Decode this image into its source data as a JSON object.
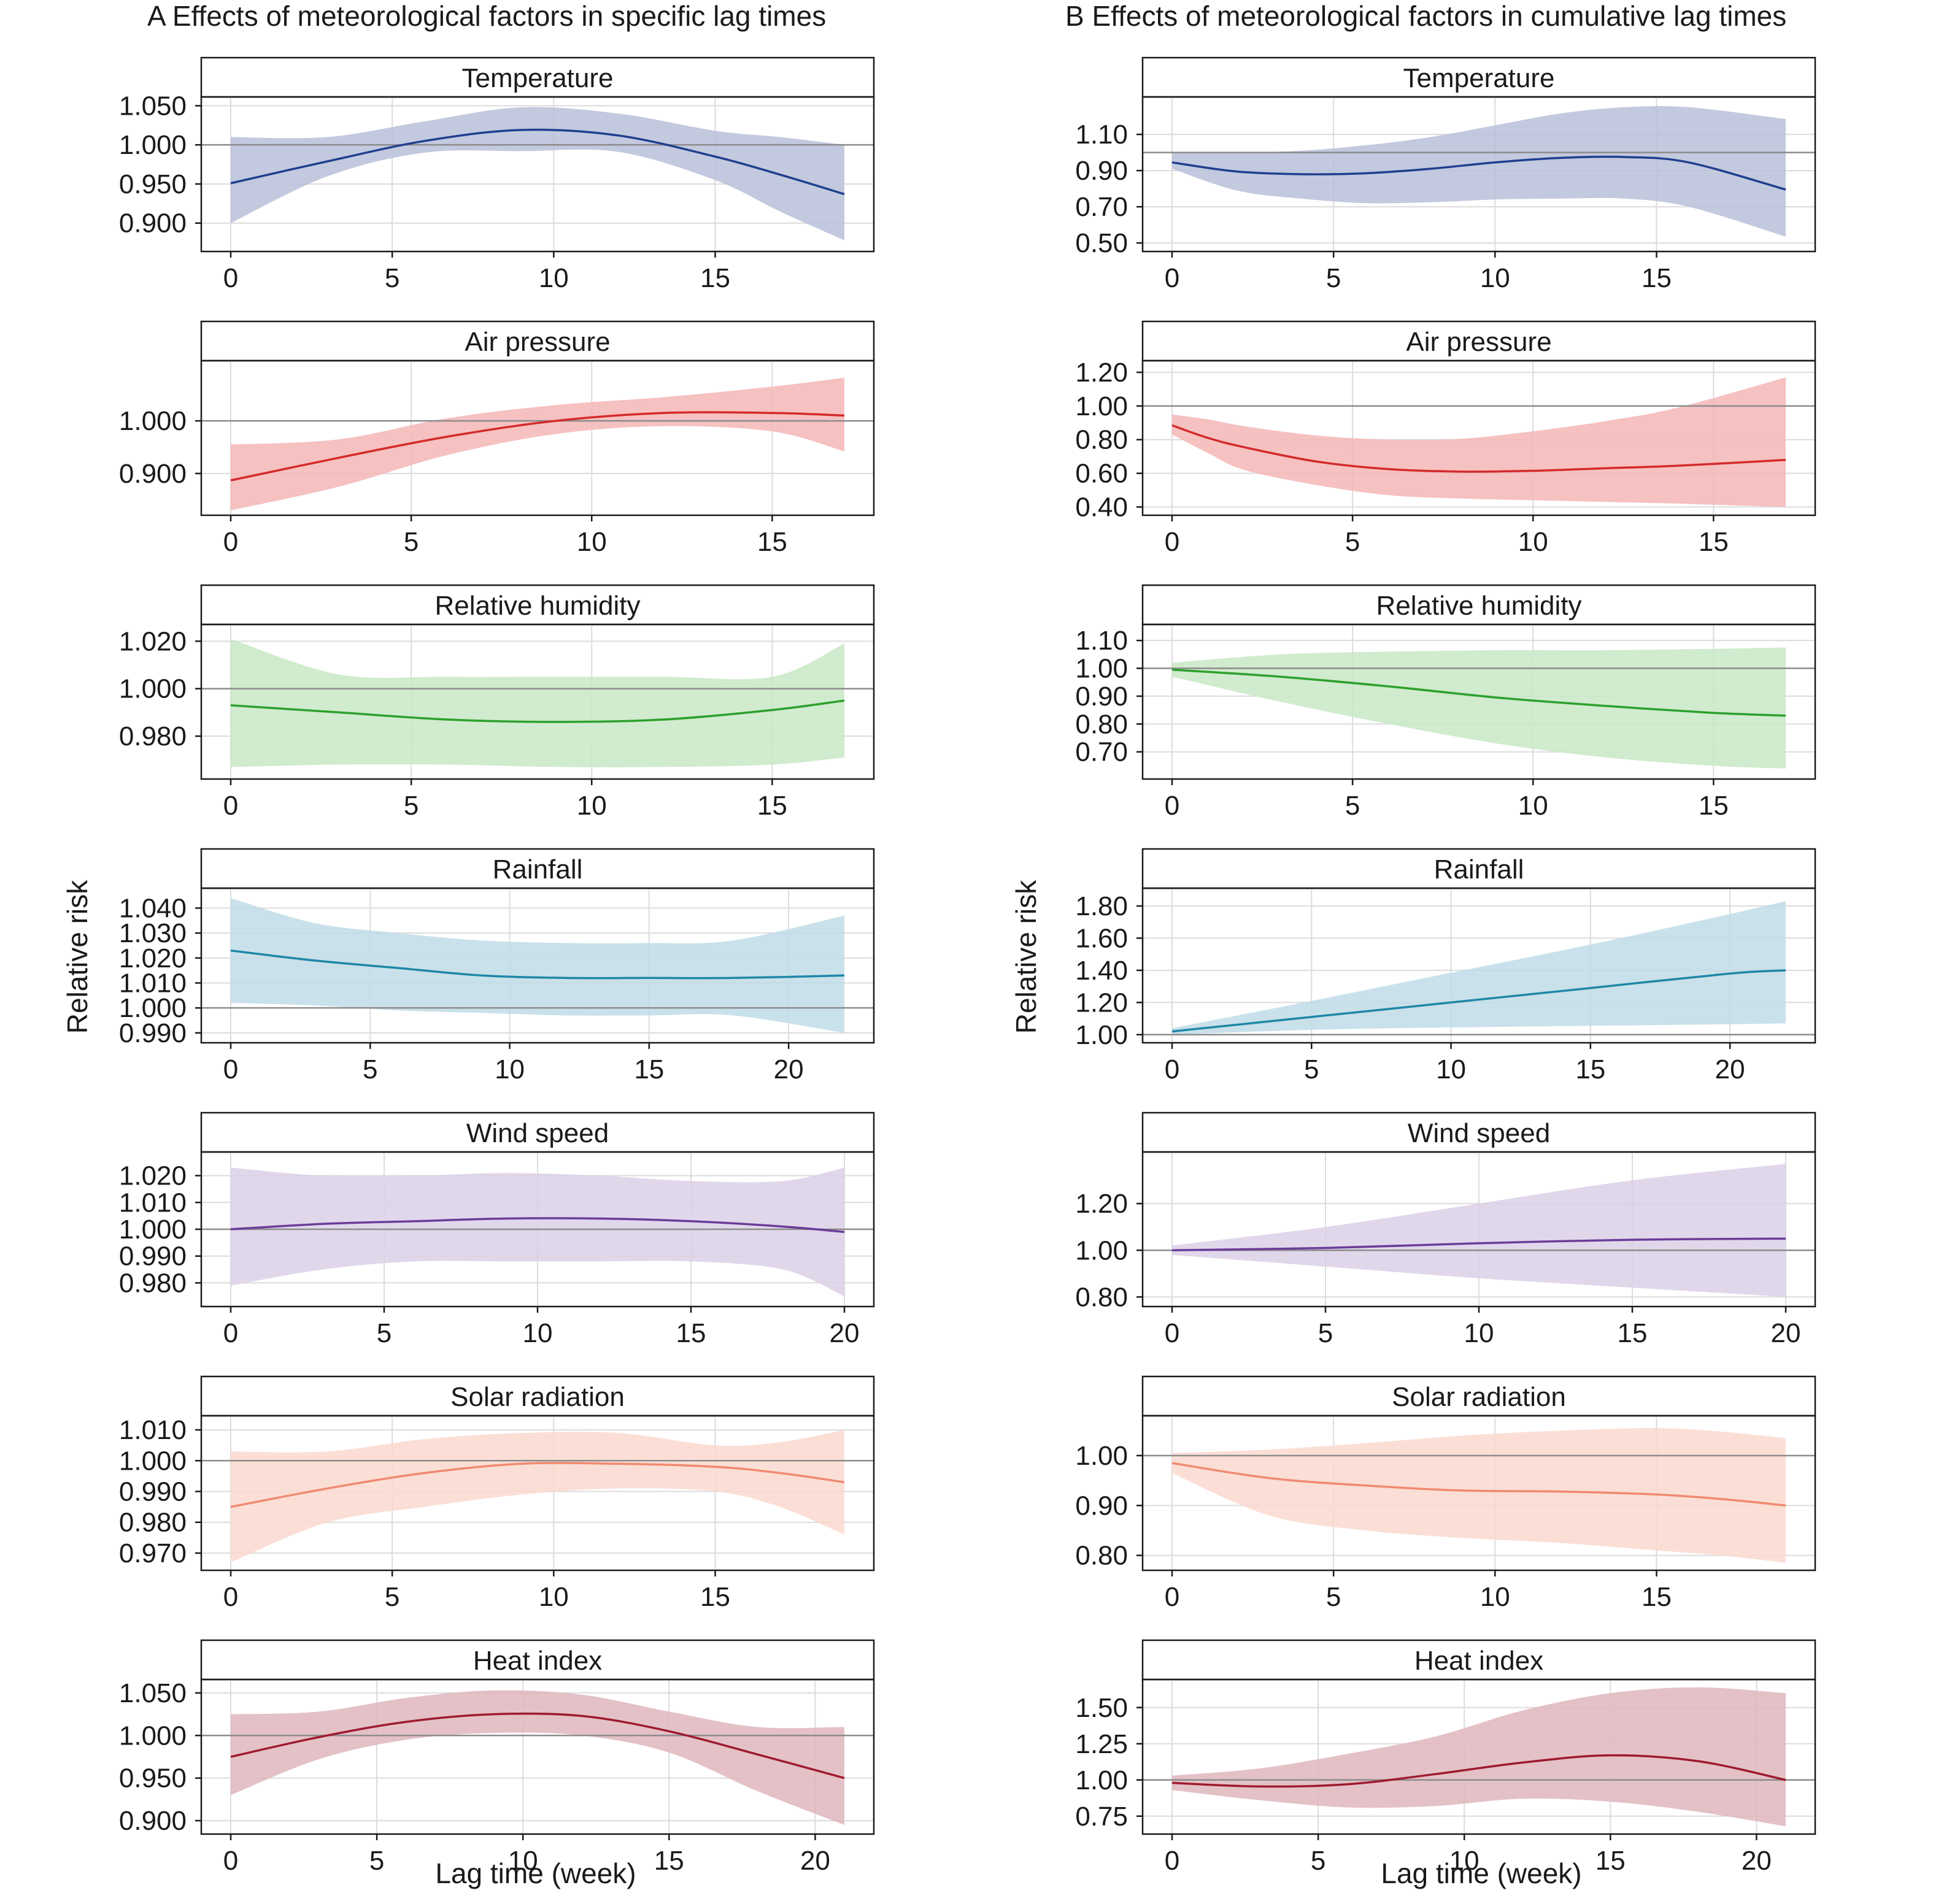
{
  "figure": {
    "panel_a_title": "A  Effects of meteorological factors in specific lag times",
    "panel_b_title": "B  Effects of meteorological factors in cumulative lag times",
    "ylabel": "Relative risk",
    "xlabel": "Lag time (week)"
  },
  "chart_data": [
    {
      "type": "line",
      "panel": "A",
      "title": "Temperature",
      "color": "#1f3f8f",
      "band_color": "#b8c0d8",
      "xlabel": "",
      "ylabel": "",
      "xlim": [
        0,
        19
      ],
      "ylim": [
        0.87,
        1.055
      ],
      "xticks": [
        0,
        5,
        10,
        15
      ],
      "yticks": [
        0.9,
        0.95,
        1.0,
        1.05
      ],
      "ytick_labels": [
        "0.900",
        "0.950",
        "1.000",
        "1.050"
      ],
      "reference": 1.0,
      "x": [
        0,
        3,
        6,
        9,
        12,
        15,
        17,
        19
      ],
      "estimate": [
        0.951,
        0.979,
        1.005,
        1.019,
        1.012,
        0.985,
        0.962,
        0.937
      ],
      "lower": [
        0.9,
        0.96,
        0.99,
        0.992,
        0.991,
        0.955,
        0.915,
        0.878
      ],
      "upper": [
        1.01,
        1.01,
        1.03,
        1.048,
        1.04,
        1.018,
        1.01,
        1.0
      ]
    },
    {
      "type": "line",
      "panel": "B",
      "title": "Temperature",
      "color": "#1f3f8f",
      "band_color": "#b8c0d8",
      "xlabel": "",
      "ylabel": "",
      "xlim": [
        0,
        19
      ],
      "ylim": [
        0.48,
        1.28
      ],
      "xticks": [
        0,
        5,
        10,
        15
      ],
      "yticks": [
        0.5,
        0.7,
        0.9,
        1.1
      ],
      "ytick_labels": [
        "0.50",
        "0.70",
        "0.90",
        "1.10"
      ],
      "reference": 1.0,
      "x": [
        0,
        2,
        4,
        6,
        8,
        10,
        12,
        14,
        16,
        19
      ],
      "estimate": [
        0.945,
        0.895,
        0.88,
        0.885,
        0.91,
        0.945,
        0.97,
        0.975,
        0.945,
        0.795
      ],
      "lower": [
        0.91,
        0.79,
        0.745,
        0.72,
        0.725,
        0.74,
        0.745,
        0.745,
        0.7,
        0.535
      ],
      "upper": [
        1.0,
        1.0,
        1.01,
        1.04,
        1.085,
        1.15,
        1.215,
        1.25,
        1.25,
        1.185
      ]
    },
    {
      "type": "line",
      "panel": "A",
      "title": "Air pressure",
      "color": "#d42a2a",
      "band_color": "#f4b6b6",
      "xlabel": "",
      "ylabel": "",
      "xlim": [
        0,
        17
      ],
      "ylim": [
        0.83,
        1.105
      ],
      "xticks": [
        0,
        5,
        10,
        15
      ],
      "yticks": [
        0.9,
        1.0
      ],
      "ytick_labels": [
        "0.900",
        "1.000"
      ],
      "reference": 1.0,
      "x": [
        0,
        3,
        6,
        9,
        12,
        15,
        17
      ],
      "estimate": [
        0.887,
        0.93,
        0.97,
        1.0,
        1.015,
        1.015,
        1.01
      ],
      "lower": [
        0.83,
        0.875,
        0.935,
        0.975,
        0.99,
        0.98,
        0.942
      ],
      "upper": [
        0.955,
        0.965,
        1.005,
        1.03,
        1.045,
        1.065,
        1.082
      ]
    },
    {
      "type": "line",
      "panel": "B",
      "title": "Air pressure",
      "color": "#d42a2a",
      "band_color": "#f4b6b6",
      "xlabel": "",
      "ylabel": "",
      "xlim": [
        0,
        17
      ],
      "ylim": [
        0.38,
        1.24
      ],
      "xticks": [
        0,
        5,
        10,
        15
      ],
      "yticks": [
        0.4,
        0.6,
        0.8,
        1.0,
        1.2
      ],
      "ytick_labels": [
        "0.40",
        "0.60",
        "0.80",
        "1.00",
        "1.20"
      ],
      "reference": 1.0,
      "x": [
        0,
        1,
        2,
        4,
        6,
        8,
        10,
        12,
        14,
        17
      ],
      "estimate": [
        0.885,
        0.81,
        0.755,
        0.67,
        0.625,
        0.61,
        0.615,
        0.63,
        0.645,
        0.68
      ],
      "lower": [
        0.83,
        0.72,
        0.62,
        0.53,
        0.47,
        0.45,
        0.44,
        0.43,
        0.42,
        0.4
      ],
      "upper": [
        0.95,
        0.92,
        0.88,
        0.825,
        0.8,
        0.805,
        0.85,
        0.91,
        0.99,
        1.17
      ]
    },
    {
      "type": "line",
      "panel": "A",
      "title": "Relative humidity",
      "color": "#2ca02c",
      "band_color": "#c8e8c4",
      "xlabel": "",
      "ylabel": "",
      "xlim": [
        0,
        17
      ],
      "ylim": [
        0.964,
        1.025
      ],
      "xticks": [
        0,
        5,
        10,
        15
      ],
      "yticks": [
        0.98,
        1.0,
        1.02
      ],
      "ytick_labels": [
        "0.980",
        "1.000",
        "1.020"
      ],
      "reference": 1.0,
      "x": [
        0,
        3,
        6,
        9,
        12,
        15,
        17
      ],
      "estimate": [
        0.993,
        0.99,
        0.987,
        0.986,
        0.987,
        0.991,
        0.995
      ],
      "lower": [
        0.967,
        0.968,
        0.968,
        0.967,
        0.967,
        0.968,
        0.971
      ],
      "upper": [
        1.021,
        1.006,
        1.005,
        1.005,
        1.005,
        1.005,
        1.019
      ]
    },
    {
      "type": "line",
      "panel": "B",
      "title": "Relative humidity",
      "color": "#2ca02c",
      "band_color": "#c8e8c4",
      "xlabel": "",
      "ylabel": "",
      "xlim": [
        0,
        17
      ],
      "ylim": [
        0.62,
        1.14
      ],
      "xticks": [
        0,
        5,
        10,
        15
      ],
      "yticks": [
        0.7,
        0.8,
        0.9,
        1.0,
        1.1
      ],
      "ytick_labels": [
        "0.70",
        "0.80",
        "0.90",
        "1.00",
        "1.10"
      ],
      "reference": 1.0,
      "x": [
        0,
        3,
        6,
        9,
        12,
        15,
        17
      ],
      "estimate": [
        0.995,
        0.97,
        0.935,
        0.895,
        0.865,
        0.84,
        0.83
      ],
      "lower": [
        0.97,
        0.88,
        0.8,
        0.73,
        0.68,
        0.65,
        0.64
      ],
      "upper": [
        1.02,
        1.05,
        1.06,
        1.065,
        1.065,
        1.07,
        1.075
      ]
    },
    {
      "type": "line",
      "panel": "A",
      "title": "Rainfall",
      "color": "#1f87a8",
      "band_color": "#c0dce6",
      "xlabel": "",
      "ylabel": "Relative risk",
      "xlim": [
        0,
        22
      ],
      "ylim": [
        0.988,
        1.046
      ],
      "xticks": [
        0,
        5,
        10,
        15,
        20
      ],
      "yticks": [
        0.99,
        1.0,
        1.01,
        1.02,
        1.03,
        1.04
      ],
      "ytick_labels": [
        "0.990",
        "1.000",
        "1.010",
        "1.020",
        "1.030",
        "1.040"
      ],
      "reference": 1.0,
      "x": [
        0,
        3,
        6,
        9,
        12,
        15,
        18,
        22
      ],
      "estimate": [
        1.023,
        1.019,
        1.016,
        1.013,
        1.012,
        1.012,
        1.012,
        1.013
      ],
      "lower": [
        1.002,
        1.001,
        0.999,
        0.998,
        0.997,
        0.997,
        0.997,
        0.99
      ],
      "upper": [
        1.044,
        1.034,
        1.03,
        1.027,
        1.026,
        1.026,
        1.027,
        1.037
      ]
    },
    {
      "type": "line",
      "panel": "B",
      "title": "Rainfall",
      "color": "#1f87a8",
      "band_color": "#c0dce6",
      "xlabel": "",
      "ylabel": "Relative risk",
      "xlim": [
        0,
        22
      ],
      "ylim": [
        0.98,
        1.88
      ],
      "xticks": [
        0,
        5,
        10,
        15,
        20
      ],
      "yticks": [
        1.0,
        1.2,
        1.4,
        1.6,
        1.8
      ],
      "ytick_labels": [
        "1.00",
        "1.20",
        "1.40",
        "1.60",
        "1.80"
      ],
      "reference": 1.0,
      "x": [
        0,
        5,
        10,
        15,
        20,
        22
      ],
      "estimate": [
        1.02,
        1.11,
        1.2,
        1.29,
        1.38,
        1.4
      ],
      "lower": [
        1.0,
        1.03,
        1.045,
        1.055,
        1.065,
        1.07
      ],
      "upper": [
        1.04,
        1.21,
        1.385,
        1.56,
        1.75,
        1.83
      ]
    },
    {
      "type": "line",
      "panel": "A",
      "title": "Wind speed",
      "color": "#6a3d9a",
      "band_color": "#dcd0e6",
      "xlabel": "",
      "ylabel": "",
      "xlim": [
        0,
        20
      ],
      "ylim": [
        0.973,
        1.027
      ],
      "xticks": [
        0,
        5,
        10,
        15,
        20
      ],
      "yticks": [
        0.98,
        0.99,
        1.0,
        1.01,
        1.02
      ],
      "ytick_labels": [
        "0.980",
        "0.990",
        "1.000",
        "1.010",
        "1.020"
      ],
      "reference": 1.0,
      "x": [
        0,
        3,
        6,
        9,
        12,
        15,
        18,
        20
      ],
      "estimate": [
        1.0,
        1.002,
        1.003,
        1.004,
        1.004,
        1.003,
        1.001,
        0.999
      ],
      "lower": [
        0.979,
        0.985,
        0.988,
        0.988,
        0.988,
        0.988,
        0.985,
        0.975
      ],
      "upper": [
        1.023,
        1.02,
        1.02,
        1.021,
        1.02,
        1.018,
        1.018,
        1.023
      ]
    },
    {
      "type": "line",
      "panel": "B",
      "title": "Wind speed",
      "color": "#6a3d9a",
      "band_color": "#dcd0e6",
      "xlabel": "",
      "ylabel": "",
      "xlim": [
        0,
        20
      ],
      "ylim": [
        0.78,
        1.4
      ],
      "xticks": [
        0,
        5,
        10,
        15,
        20
      ],
      "yticks": [
        0.8,
        1.0,
        1.2
      ],
      "ytick_labels": [
        "0.80",
        "1.00",
        "1.20"
      ],
      "reference": 1.0,
      "x": [
        0,
        5,
        10,
        15,
        20
      ],
      "estimate": [
        1.0,
        1.01,
        1.03,
        1.045,
        1.05
      ],
      "lower": [
        0.98,
        0.93,
        0.88,
        0.84,
        0.8
      ],
      "upper": [
        1.02,
        1.1,
        1.2,
        1.3,
        1.37
      ]
    },
    {
      "type": "line",
      "panel": "A",
      "title": "Solar radiation",
      "color": "#f08a70",
      "band_color": "#fad9cf",
      "xlabel": "",
      "ylabel": "",
      "xlim": [
        0,
        19
      ],
      "ylim": [
        0.966,
        1.013
      ],
      "xticks": [
        0,
        5,
        10,
        15
      ],
      "yticks": [
        0.97,
        0.98,
        0.99,
        1.0,
        1.01
      ],
      "ytick_labels": [
        "0.970",
        "0.980",
        "0.990",
        "1.000",
        "1.010"
      ],
      "reference": 1.0,
      "x": [
        0,
        3,
        6,
        9,
        12,
        15,
        17,
        19
      ],
      "estimate": [
        0.985,
        0.991,
        0.996,
        0.999,
        0.999,
        0.998,
        0.996,
        0.993
      ],
      "lower": [
        0.967,
        0.98,
        0.985,
        0.989,
        0.991,
        0.99,
        0.985,
        0.976
      ],
      "upper": [
        1.003,
        1.003,
        1.007,
        1.009,
        1.009,
        1.005,
        1.006,
        1.01
      ]
    },
    {
      "type": "line",
      "panel": "B",
      "title": "Solar radiation",
      "color": "#f08a70",
      "band_color": "#fad9cf",
      "xlabel": "",
      "ylabel": "",
      "xlim": [
        0,
        19
      ],
      "ylim": [
        0.78,
        1.07
      ],
      "xticks": [
        0,
        5,
        10,
        15
      ],
      "yticks": [
        0.8,
        0.9,
        1.0
      ],
      "ytick_labels": [
        "0.80",
        "0.90",
        "1.00"
      ],
      "reference": 1.0,
      "x": [
        0,
        3,
        6,
        9,
        12,
        15,
        17,
        19
      ],
      "estimate": [
        0.985,
        0.955,
        0.94,
        0.93,
        0.928,
        0.922,
        0.913,
        0.9
      ],
      "lower": [
        0.965,
        0.88,
        0.85,
        0.835,
        0.825,
        0.81,
        0.8,
        0.785
      ],
      "upper": [
        1.005,
        1.012,
        1.025,
        1.04,
        1.05,
        1.055,
        1.048,
        1.035
      ]
    },
    {
      "type": "line",
      "panel": "A",
      "title": "Heat index",
      "color": "#9e1b2e",
      "band_color": "#dfb6bd",
      "xlabel": "Lag time (week)",
      "ylabel": "",
      "xlim": [
        0,
        21
      ],
      "ylim": [
        0.89,
        1.06
      ],
      "xticks": [
        0,
        5,
        10,
        15,
        20
      ],
      "yticks": [
        0.9,
        0.95,
        1.0,
        1.05
      ],
      "ytick_labels": [
        "0.900",
        "0.950",
        "1.000",
        "1.050"
      ],
      "reference": 1.0,
      "x": [
        0,
        3,
        6,
        9,
        12,
        15,
        18,
        21
      ],
      "estimate": [
        0.975,
        0.998,
        1.016,
        1.025,
        1.023,
        1.005,
        0.978,
        0.95
      ],
      "lower": [
        0.93,
        0.972,
        0.995,
        1.003,
        1.0,
        0.98,
        0.935,
        0.895
      ],
      "upper": [
        1.025,
        1.028,
        1.044,
        1.053,
        1.048,
        1.028,
        1.01,
        1.01
      ]
    },
    {
      "type": "line",
      "panel": "B",
      "title": "Heat index",
      "color": "#9e1b2e",
      "band_color": "#dfb6bd",
      "xlabel": "Lag time (week)",
      "ylabel": "",
      "xlim": [
        0,
        21
      ],
      "ylim": [
        0.66,
        1.66
      ],
      "xticks": [
        0,
        5,
        10,
        15,
        20
      ],
      "yticks": [
        0.75,
        1.0,
        1.25,
        1.5
      ],
      "ytick_labels": [
        "0.75",
        "1.00",
        "1.25",
        "1.50"
      ],
      "reference": 1.0,
      "x": [
        0,
        3,
        6,
        9,
        12,
        15,
        18,
        21
      ],
      "estimate": [
        0.98,
        0.955,
        0.97,
        1.04,
        1.12,
        1.17,
        1.13,
        1.0
      ],
      "lower": [
        0.93,
        0.86,
        0.81,
        0.82,
        0.87,
        0.85,
        0.78,
        0.68
      ],
      "upper": [
        1.03,
        1.08,
        1.18,
        1.3,
        1.48,
        1.6,
        1.64,
        1.6
      ]
    }
  ]
}
